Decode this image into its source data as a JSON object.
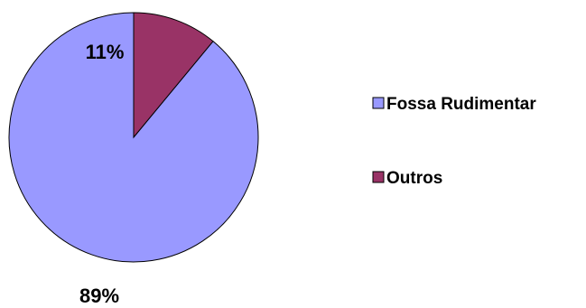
{
  "chart_data": {
    "type": "pie",
    "title": "",
    "slices": [
      {
        "label": "Fossa Rudimentar",
        "value": 89,
        "display": "89%",
        "color": "#9999ff"
      },
      {
        "label": "Outros",
        "value": 11,
        "display": "11%",
        "color": "#993366"
      }
    ],
    "start_angle_deg": 0,
    "direction": "counterclockwise",
    "legend_position": "right",
    "grid": false
  }
}
